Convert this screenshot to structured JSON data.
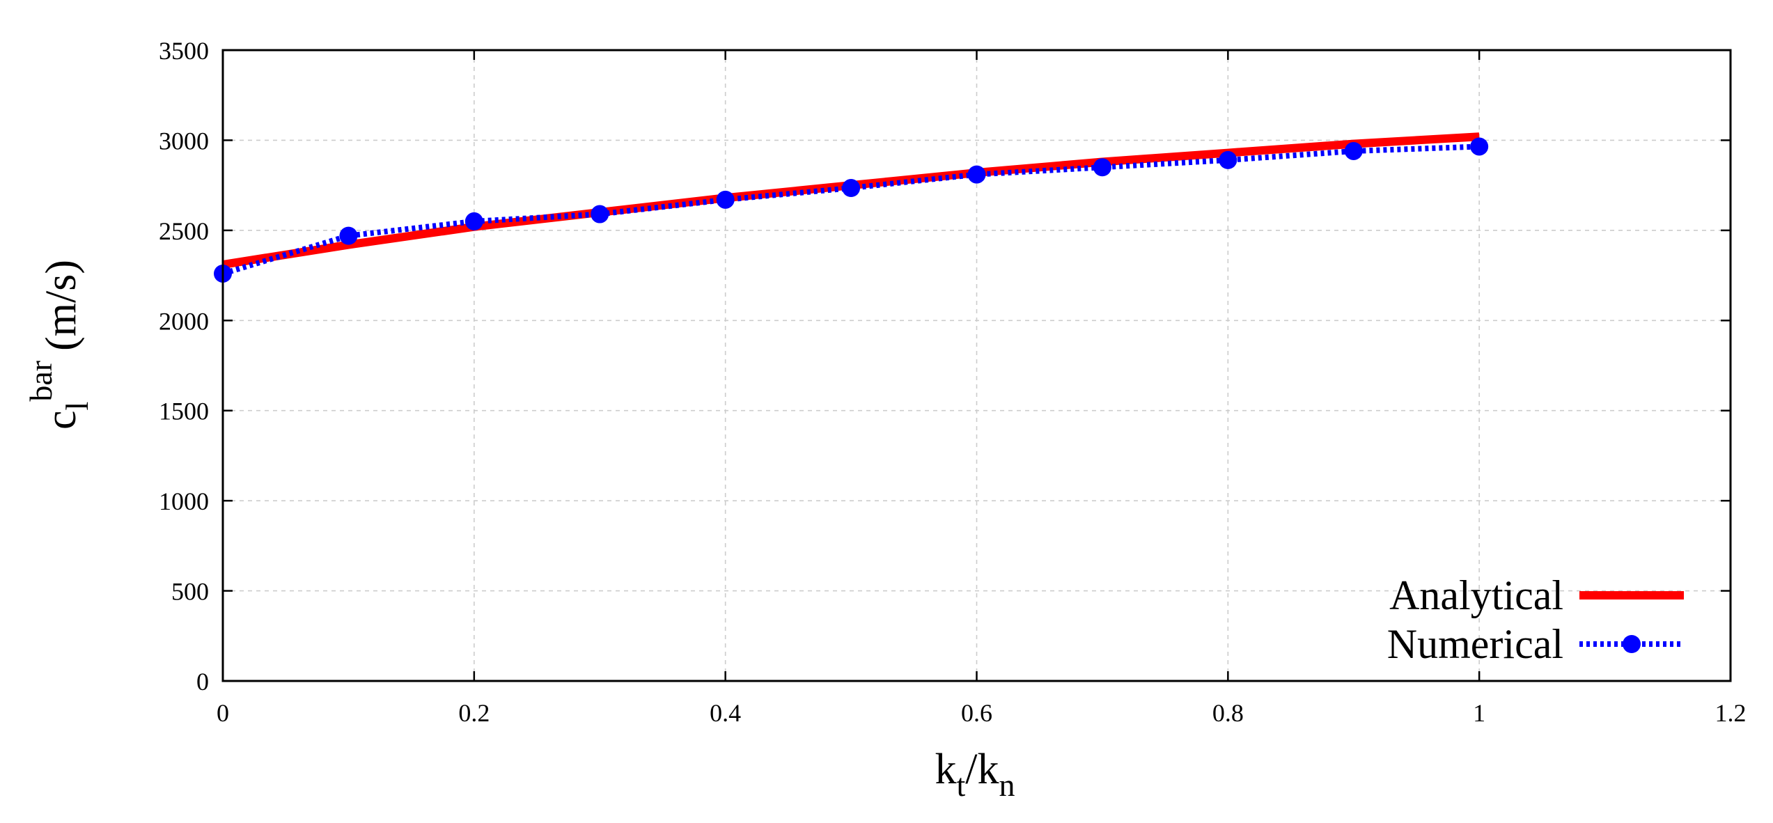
{
  "chart_data": {
    "type": "line",
    "title": "",
    "xlabel": {
      "base": "k",
      "sub1": "t",
      "slash": "/",
      "base2": "k",
      "sub2": "n"
    },
    "ylabel": {
      "base": "c",
      "sub": "l",
      "sup": "bar",
      "unit": "(m/s)"
    },
    "xlim": [
      0,
      1.2
    ],
    "ylim": [
      0,
      3500
    ],
    "x_ticks": [
      0,
      0.2,
      0.4,
      0.6,
      0.8,
      1,
      1.2
    ],
    "x_tick_labels": [
      "0",
      "0.2",
      "0.4",
      "0.6",
      "0.8",
      "1",
      "1.2"
    ],
    "y_ticks": [
      0,
      500,
      1000,
      1500,
      2000,
      2500,
      3000,
      3500
    ],
    "y_tick_labels": [
      "0",
      "500",
      "1000",
      "1500",
      "2000",
      "2500",
      "3000",
      "3500"
    ],
    "grid": true,
    "legend_position": "bottom-right",
    "series": [
      {
        "name": "Analytical",
        "style": "solid",
        "color": "#ff0000",
        "x": [
          0,
          0.1,
          0.2,
          0.3,
          0.4,
          0.5,
          0.6,
          0.7,
          0.8,
          0.9,
          1.0
        ],
        "y": [
          2310,
          2420,
          2520,
          2600,
          2680,
          2750,
          2820,
          2880,
          2930,
          2980,
          3020
        ]
      },
      {
        "name": "Numerical",
        "style": "dotted-with-markers",
        "color": "#0000ff",
        "x": [
          0,
          0.1,
          0.2,
          0.3,
          0.4,
          0.5,
          0.6,
          0.7,
          0.8,
          0.9,
          1.0
        ],
        "y": [
          2260,
          2470,
          2550,
          2590,
          2670,
          2735,
          2810,
          2850,
          2890,
          2940,
          2965
        ]
      }
    ]
  }
}
